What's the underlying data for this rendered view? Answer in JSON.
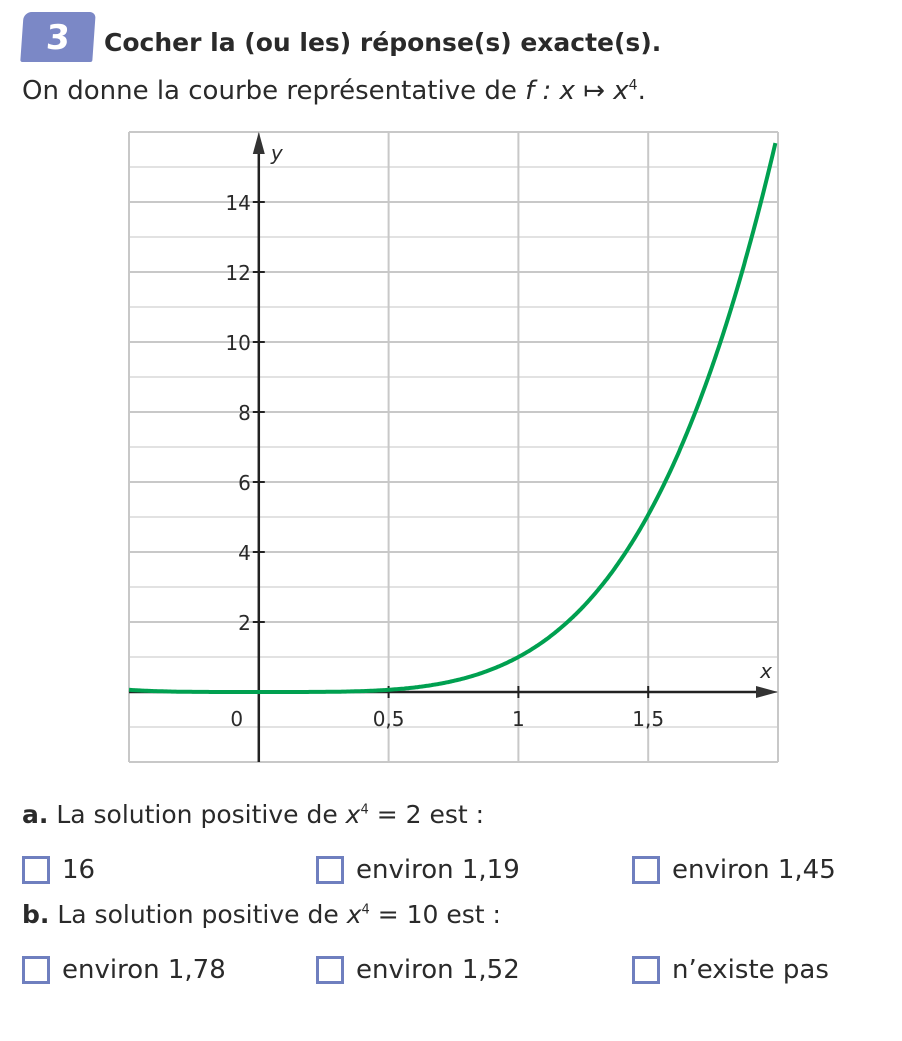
{
  "exercise": {
    "number": "3",
    "title": "Cocher la (ou les) réponse(s) exacte(s).",
    "subtitle_prefix": "On donne la courbe représentative de ",
    "subtitle_function": "f : x ↦ x",
    "subtitle_exp": "4",
    "subtitle_end": "."
  },
  "questions": [
    {
      "letter": "a.",
      "text_before": " La solution positive de ",
      "var": "x",
      "exp": "4",
      "text_after": " = 2 est :",
      "options": [
        "16",
        "environ 1,19",
        "environ 1,45"
      ]
    },
    {
      "letter": "b.",
      "text_before": " La solution positive de ",
      "var": "x",
      "exp": "4",
      "text_after": " = 10 est :",
      "options": [
        "environ 1,78",
        "environ 1,52",
        "n’existe pas"
      ]
    }
  ],
  "colors": {
    "curve": "#00a050",
    "badge": "#7b88c6",
    "checkbox": "#6f7fbf",
    "grid": "#c8c8c8"
  },
  "chart_data": {
    "type": "line",
    "function": "x^4",
    "xlabel": "x",
    "ylabel": "y",
    "xlim": [
      -0.5,
      2
    ],
    "ylim": [
      -2,
      16
    ],
    "x_ticks": [
      0.5,
      1,
      1.5
    ],
    "x_tick_labels": [
      "0,5",
      "1",
      "1,5"
    ],
    "y_ticks": [
      2,
      4,
      6,
      8,
      10,
      12,
      14
    ],
    "y_tick_labels": [
      "2",
      "4",
      "6",
      "8",
      "10",
      "12",
      "14"
    ],
    "origin_label": "0",
    "grid": true,
    "series": [
      {
        "x": [
          -0.5,
          0,
          0.5,
          1,
          1.25,
          1.5,
          1.75,
          2
        ],
        "y": [
          0.0625,
          0,
          0.0625,
          1,
          2.44,
          5.06,
          9.38,
          16
        ]
      }
    ]
  }
}
